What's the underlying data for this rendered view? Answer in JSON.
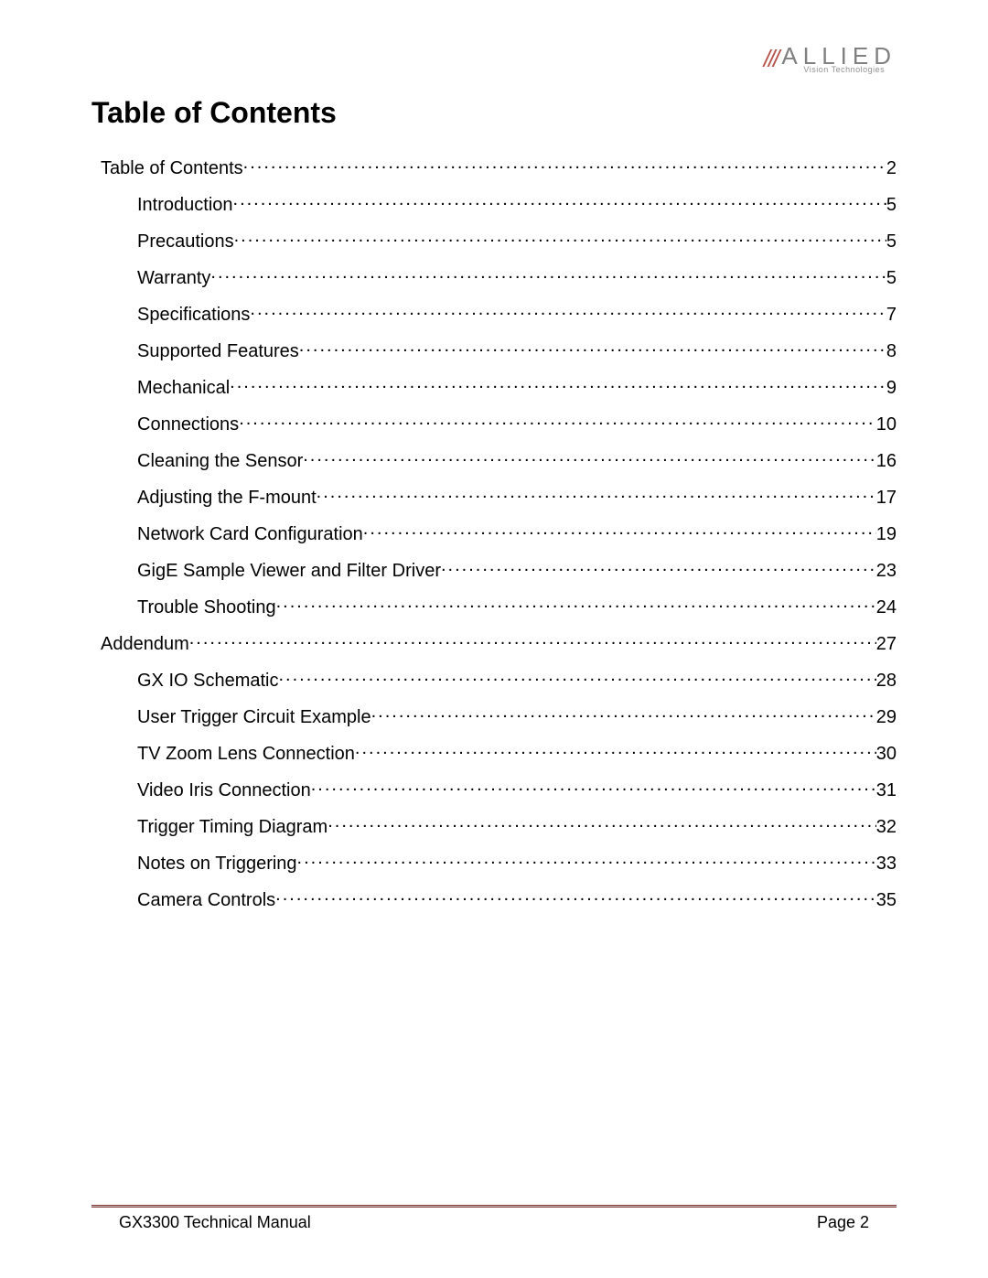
{
  "logo": {
    "slashes": "///",
    "main": "ALLIED",
    "sub": "Vision Technologies"
  },
  "heading": "Table of Contents",
  "toc": [
    {
      "level": 0,
      "label": "Table of Contents",
      "page": "2"
    },
    {
      "level": 1,
      "label": "Introduction",
      "page": "5"
    },
    {
      "level": 1,
      "label": "Precautions",
      "page": "5"
    },
    {
      "level": 1,
      "label": "Warranty",
      "page": "5"
    },
    {
      "level": 1,
      "label": "Specifications",
      "page": "7"
    },
    {
      "level": 1,
      "label": "Supported Features",
      "page": "8"
    },
    {
      "level": 1,
      "label": "Mechanical",
      "page": "9"
    },
    {
      "level": 1,
      "label": "Connections",
      "page": "10"
    },
    {
      "level": 1,
      "label": "Cleaning the Sensor",
      "page": "16"
    },
    {
      "level": 1,
      "label": "Adjusting the F-mount",
      "page": "17"
    },
    {
      "level": 1,
      "label": "Network Card Configuration",
      "page": "19"
    },
    {
      "level": 1,
      "label": "GigE Sample Viewer and Filter Driver",
      "page": "23"
    },
    {
      "level": 1,
      "label": "Trouble Shooting",
      "page": "24"
    },
    {
      "level": 0,
      "label": "Addendum",
      "page": "27"
    },
    {
      "level": 1,
      "label": "GX IO Schematic",
      "page": "28"
    },
    {
      "level": 1,
      "label": "User Trigger Circuit Example",
      "page": "29"
    },
    {
      "level": 1,
      "label": "TV Zoom Lens Connection",
      "page": "30"
    },
    {
      "level": 1,
      "label": "Video Iris Connection",
      "page": "31"
    },
    {
      "level": 1,
      "label": "Trigger Timing Diagram",
      "page": "32"
    },
    {
      "level": 1,
      "label": "Notes on Triggering",
      "page": "33"
    },
    {
      "level": 1,
      "label": "Camera Controls",
      "page": "35"
    }
  ],
  "footer": {
    "left": "GX3300 Technical Manual",
    "right": "Page 2"
  }
}
